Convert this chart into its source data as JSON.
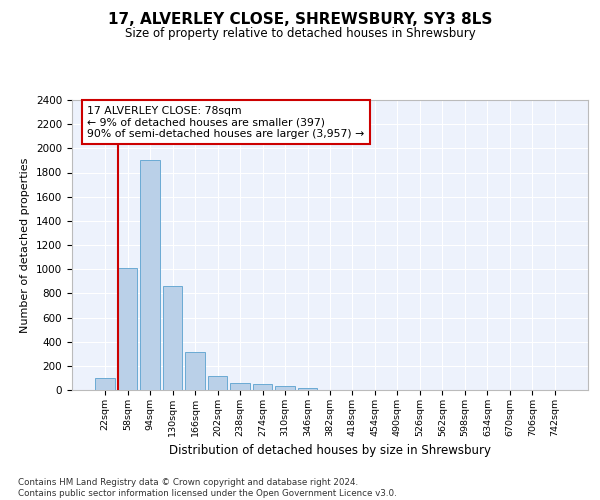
{
  "title": "17, ALVERLEY CLOSE, SHREWSBURY, SY3 8LS",
  "subtitle": "Size of property relative to detached houses in Shrewsbury",
  "xlabel": "Distribution of detached houses by size in Shrewsbury",
  "ylabel": "Number of detached properties",
  "bar_labels": [
    "22sqm",
    "58sqm",
    "94sqm",
    "130sqm",
    "166sqm",
    "202sqm",
    "238sqm",
    "274sqm",
    "310sqm",
    "346sqm",
    "382sqm",
    "418sqm",
    "454sqm",
    "490sqm",
    "526sqm",
    "562sqm",
    "598sqm",
    "634sqm",
    "670sqm",
    "706sqm",
    "742sqm"
  ],
  "bar_values": [
    100,
    1010,
    1900,
    860,
    315,
    120,
    60,
    50,
    35,
    20,
    0,
    0,
    0,
    0,
    0,
    0,
    0,
    0,
    0,
    0,
    0
  ],
  "bar_color": "#bad0e8",
  "bar_edge_color": "#6aaad4",
  "vline_color": "#cc0000",
  "annotation_text": "17 ALVERLEY CLOSE: 78sqm\n← 9% of detached houses are smaller (397)\n90% of semi-detached houses are larger (3,957) →",
  "annotation_box_color": "#cc0000",
  "ylim": [
    0,
    2400
  ],
  "yticks": [
    0,
    200,
    400,
    600,
    800,
    1000,
    1200,
    1400,
    1600,
    1800,
    2000,
    2200,
    2400
  ],
  "bg_color": "#edf2fc",
  "grid_color": "#ffffff",
  "fig_bg_color": "#ffffff",
  "footnote": "Contains HM Land Registry data © Crown copyright and database right 2024.\nContains public sector information licensed under the Open Government Licence v3.0."
}
